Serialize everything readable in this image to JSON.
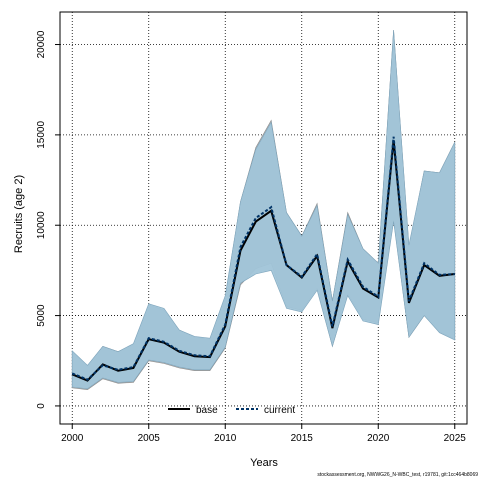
{
  "footer_text": "stockassessment.org, NWWG26_N-WBC_test, r19781, git:1cc464b8069",
  "colors": {
    "base_band": "#bdbdbd",
    "current_band": "#a0c4d8",
    "base_line": "#000000",
    "current_line": "#003366",
    "grid": "#000000"
  },
  "chart_data": {
    "type": "line",
    "xlabel": "Years",
    "ylabel": "Recruits (age 2)",
    "xlim": [
      1999.2,
      2025.8
    ],
    "ylim": [
      -1000,
      21800
    ],
    "x_ticks": [
      2000,
      2005,
      2010,
      2015,
      2020,
      2025
    ],
    "y_ticks": [
      0,
      5000,
      10000,
      15000,
      20000
    ],
    "x_tick_labels": [
      "2000",
      "2005",
      "2010",
      "2015",
      "2020",
      "2025"
    ],
    "y_tick_labels": [
      "0",
      "5000",
      "10000",
      "15000",
      "20000"
    ],
    "grid": true,
    "legend_position": "bottom-center",
    "x": [
      2000,
      2001,
      2002,
      2003,
      2004,
      2005,
      2006,
      2007,
      2008,
      2009,
      2010,
      2011,
      2012,
      2013,
      2014,
      2015,
      2016,
      2017,
      2018,
      2019,
      2020,
      2021,
      2022,
      2023,
      2024,
      2025
    ],
    "series": [
      {
        "name": "base",
        "line_style": "solid",
        "values": [
          1750,
          1400,
          2300,
          1950,
          2100,
          3700,
          3500,
          3000,
          2750,
          2700,
          4400,
          8600,
          10200,
          10800,
          7800,
          7100,
          8300,
          4300,
          8000,
          6500,
          6000,
          14700,
          5700,
          7800,
          7200,
          7300
        ],
        "lower": [
          1000,
          900,
          1500,
          1250,
          1300,
          2500,
          2350,
          2100,
          1950,
          1950,
          3200,
          6700,
          7600,
          7900,
          5500,
          5300,
          6500,
          3300,
          6200,
          4800,
          4600,
          10300,
          3800,
          5000,
          4100,
          3700
        ],
        "upper": [
          3000,
          2200,
          3300,
          3000,
          3400,
          5600,
          5300,
          4200,
          3800,
          3700,
          6000,
          11300,
          14300,
          15800,
          10700,
          9400,
          11200,
          5800,
          10700,
          8700,
          7900,
          20800,
          8800,
          13000,
          12900,
          14600
        ]
      },
      {
        "name": "current",
        "line_style": "dashed",
        "values": [
          1800,
          1450,
          2250,
          2000,
          2150,
          3750,
          3550,
          3050,
          2800,
          2750,
          4500,
          8800,
          10400,
          11000,
          7800,
          7150,
          8400,
          4400,
          8100,
          6600,
          6050,
          14900,
          5800,
          7900,
          7250,
          7300
        ],
        "lower": [
          1050,
          950,
          1550,
          1300,
          1350,
          2550,
          2400,
          2150,
          2000,
          2000,
          3250,
          6800,
          7300,
          7500,
          5400,
          5200,
          6400,
          3300,
          6100,
          4700,
          4500,
          10200,
          3800,
          5000,
          4050,
          3650
        ],
        "upper": [
          3050,
          2250,
          3300,
          3000,
          3450,
          5650,
          5400,
          4200,
          3850,
          3750,
          6100,
          11300,
          14200,
          15700,
          10700,
          9400,
          11100,
          5800,
          10600,
          8700,
          7900,
          20800,
          8900,
          13000,
          12900,
          14600
        ]
      }
    ]
  }
}
